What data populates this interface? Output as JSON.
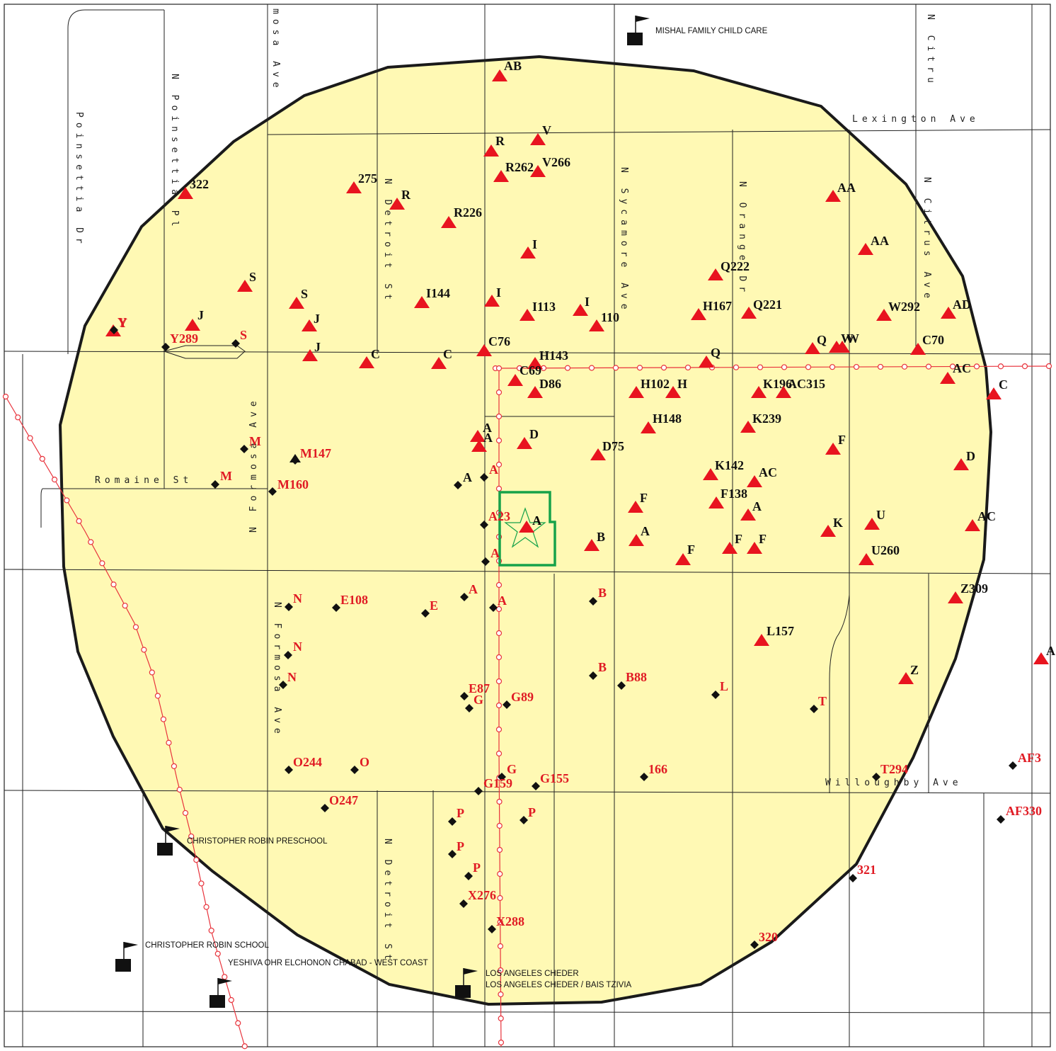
{
  "colors": {
    "radius_fill": "#fff9b4",
    "radius_stroke": "#1a1a1a",
    "street": "#222222",
    "rail": "#e8333c",
    "triangle": "#e8141f",
    "diamond": "#111111",
    "label_black": "#111111",
    "label_red": "#e01b24",
    "subject": "#16a24a",
    "school": "#111111"
  },
  "streets": [
    "Poinsettia Dr",
    "N Poinsettia Pl",
    "mosa Ave",
    "N Detroit St",
    "N Sycamore Ave",
    "N Orange Dr",
    "N Citrus Ave",
    "N Citru",
    "Lexington Ave",
    "Romaine St",
    "N Formosa Ave",
    "N Formosa Ave",
    "Willoughby Ave",
    "N Detroit St"
  ],
  "schools": [
    "MISHAL FAMILY CHILD CARE",
    "CHRISTOPHER ROBIN PRESCHOOL",
    "CHRISTOPHER ROBIN SCHOOL",
    "YESHIVA OHR ELCHONON CHABAD - WEST COAST",
    "LOS ANGELES CHEDER",
    "LOS ANGELES CHEDER / BAIS TZIVIA"
  ],
  "subject": {
    "label": "A",
    "icon": "star-icon"
  },
  "triangle_markers": [
    "AB",
    "V",
    "R",
    "R262",
    "V266",
    "275",
    "322",
    "R",
    "R226",
    "I",
    "Q222",
    "AA",
    "AA",
    "S",
    "S",
    "I144",
    "I",
    "I113",
    "I",
    "110",
    "H167",
    "Q221",
    "W292",
    "AD",
    "Y",
    "J",
    "J",
    "J",
    "C",
    "C",
    "C76",
    "H143",
    "Q",
    "Q",
    "W",
    "W",
    "C70",
    "C69",
    "D86",
    "H102",
    "H",
    "K196",
    "AC315",
    "AC",
    "C",
    "A",
    "A",
    "D",
    "D75",
    "H148",
    "K239",
    "F",
    "K142",
    "AC",
    "D",
    "F",
    "F138",
    "A",
    "B",
    "A",
    "F",
    "F",
    "F",
    "K",
    "U",
    "U260",
    "AC",
    "Z309",
    "L157",
    "Z",
    "A"
  ],
  "diamond_markers": [
    "Y",
    "Y289",
    "S",
    "M",
    "M147",
    "A",
    "A",
    "M",
    "M160",
    "A23",
    "A",
    "A",
    "A",
    "N",
    "E108",
    "E",
    "B",
    "N",
    "N",
    "B",
    "B88",
    "L",
    "T",
    "E87",
    "G",
    "G89",
    "O244",
    "O",
    "G",
    "G159",
    "G155",
    "166",
    "T294",
    "AF3",
    "O247",
    "P",
    "P",
    "AF330",
    "P",
    "P",
    "321",
    "X276",
    "X288",
    "320"
  ]
}
